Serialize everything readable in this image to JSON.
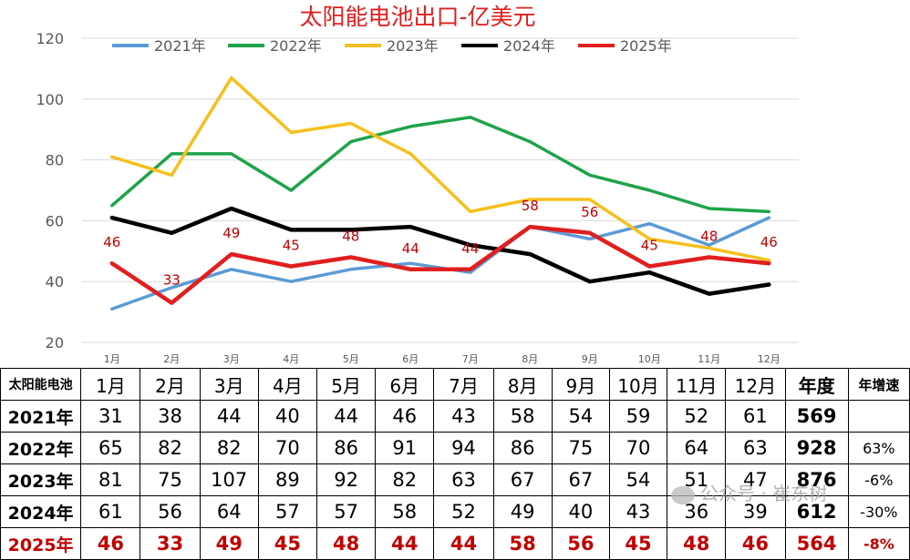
{
  "chart_data": {
    "type": "line",
    "title": "太阳能电池出口-亿美元",
    "categories": [
      "1月",
      "2月",
      "3月",
      "4月",
      "5月",
      "6月",
      "7月",
      "8月",
      "9月",
      "10月",
      "11月",
      "12月"
    ],
    "ylim": [
      20,
      120
    ],
    "yticks": [
      20,
      40,
      60,
      80,
      100,
      120
    ],
    "grid": true,
    "legend_position": "top",
    "series": [
      {
        "name": "2021年",
        "color": "#5b9bd5",
        "values": [
          31,
          38,
          44,
          40,
          44,
          46,
          43,
          58,
          54,
          59,
          52,
          61
        ]
      },
      {
        "name": "2022年",
        "color": "#1fa34a",
        "values": [
          65,
          82,
          82,
          70,
          86,
          91,
          94,
          86,
          75,
          70,
          64,
          63
        ]
      },
      {
        "name": "2023年",
        "color": "#f5c01e",
        "values": [
          81,
          75,
          107,
          89,
          92,
          82,
          63,
          67,
          67,
          54,
          51,
          47
        ]
      },
      {
        "name": "2024年",
        "color": "#000000",
        "values": [
          61,
          56,
          64,
          57,
          57,
          58,
          52,
          49,
          40,
          43,
          36,
          39
        ]
      },
      {
        "name": "2025年",
        "color": "#e01f1f",
        "values": [
          46,
          33,
          49,
          45,
          48,
          44,
          44,
          58,
          56,
          45,
          48,
          46
        ]
      }
    ],
    "data_labels": {
      "series": "2025年",
      "values": [
        "46",
        "33",
        "49",
        "45",
        "48",
        "44",
        "44",
        "58",
        "56",
        "45",
        "48",
        "46"
      ],
      "color": "#c00000"
    },
    "title_color": "#e01f1f"
  },
  "table": {
    "corner": "太阳能电池",
    "months": [
      "1月",
      "2月",
      "3月",
      "4月",
      "5月",
      "6月",
      "7月",
      "8月",
      "9月",
      "10月",
      "11月",
      "12月"
    ],
    "total_header": "年度",
    "growth_header": "年增速",
    "rows": [
      {
        "year": "2021年",
        "values": [
          "31",
          "38",
          "44",
          "40",
          "44",
          "46",
          "43",
          "58",
          "54",
          "59",
          "52",
          "61"
        ],
        "total": "569",
        "growth": ""
      },
      {
        "year": "2022年",
        "values": [
          "65",
          "82",
          "82",
          "70",
          "86",
          "91",
          "94",
          "86",
          "75",
          "70",
          "64",
          "63"
        ],
        "total": "928",
        "growth": "63%"
      },
      {
        "year": "2023年",
        "values": [
          "81",
          "75",
          "107",
          "89",
          "92",
          "82",
          "63",
          "67",
          "67",
          "54",
          "51",
          "47"
        ],
        "total": "876",
        "growth": "-6%"
      },
      {
        "year": "2024年",
        "values": [
          "61",
          "56",
          "64",
          "57",
          "57",
          "58",
          "52",
          "49",
          "40",
          "43",
          "36",
          "39"
        ],
        "total": "612",
        "growth": "-30%"
      },
      {
        "year": "2025年",
        "values": [
          "46",
          "33",
          "49",
          "45",
          "48",
          "44",
          "44",
          "58",
          "56",
          "45",
          "48",
          "46"
        ],
        "total": "564",
        "growth": "-8%"
      }
    ]
  },
  "watermark": "公众号 · 崔东树"
}
